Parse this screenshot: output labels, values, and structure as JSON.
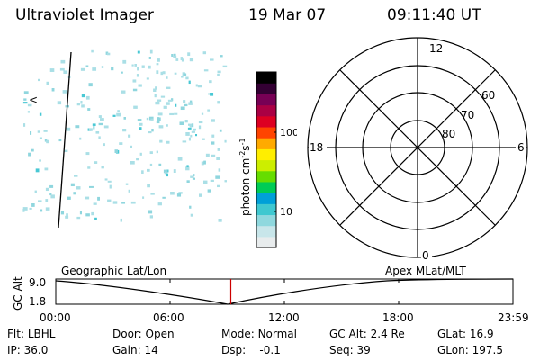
{
  "header": {
    "instrument": "Ultraviolet Imager",
    "date": "19 Mar 07",
    "time": "09:11:40 UT"
  },
  "left_panel": {
    "marker": "<",
    "scatter_color": "#aadfe6"
  },
  "colorbar": {
    "unit_label": "photon cm",
    "unit_exp1": "-2",
    "unit_s": "s",
    "unit_exp2": "-1",
    "ticks": [
      "100",
      "10"
    ],
    "scale": "log",
    "colors": [
      "#e8eced",
      "#c8e6ea",
      "#8fd8de",
      "#3fc8d0",
      "#00a0d8",
      "#00cc55",
      "#66dd00",
      "#ccee00",
      "#ffee00",
      "#ffaa00",
      "#ff4400",
      "#dd0022",
      "#aa0044",
      "#770055",
      "#330033",
      "#000000"
    ]
  },
  "polar": {
    "mlt_labels": {
      "top": "12",
      "left": "18",
      "right": "6",
      "bottom": "0"
    },
    "lat_labels": [
      "60",
      "70",
      "80"
    ]
  },
  "ephemeris": {
    "y_label": "GC Alt",
    "y_ticks": [
      "9.0",
      "1.8"
    ],
    "left_title": "Geographic Lat/Lon",
    "right_title": "Apex  MLat/MLT",
    "x_ticks": [
      "00:00",
      "06:00",
      "12:00",
      "18:00",
      "23:59"
    ],
    "marker_color": "#cc0000",
    "current_time_hours": 9.19
  },
  "status": {
    "row1": [
      {
        "label": "Flt:",
        "value": "LBHL"
      },
      {
        "label": "Door:",
        "value": "Open"
      },
      {
        "label": "Mode:",
        "value": "Normal"
      },
      {
        "label": "GC Alt:",
        "value": "2.4 Re"
      },
      {
        "label": "GLat:",
        "value": "16.9"
      }
    ],
    "row2": [
      {
        "label": "IP:",
        "value": "36.0"
      },
      {
        "label": "Gain:",
        "value": "14"
      },
      {
        "label": "Dsp:",
        "value": "-0.1"
      },
      {
        "label": "Seq:",
        "value": "39"
      },
      {
        "label": "GLon:",
        "value": "197.5"
      }
    ]
  }
}
